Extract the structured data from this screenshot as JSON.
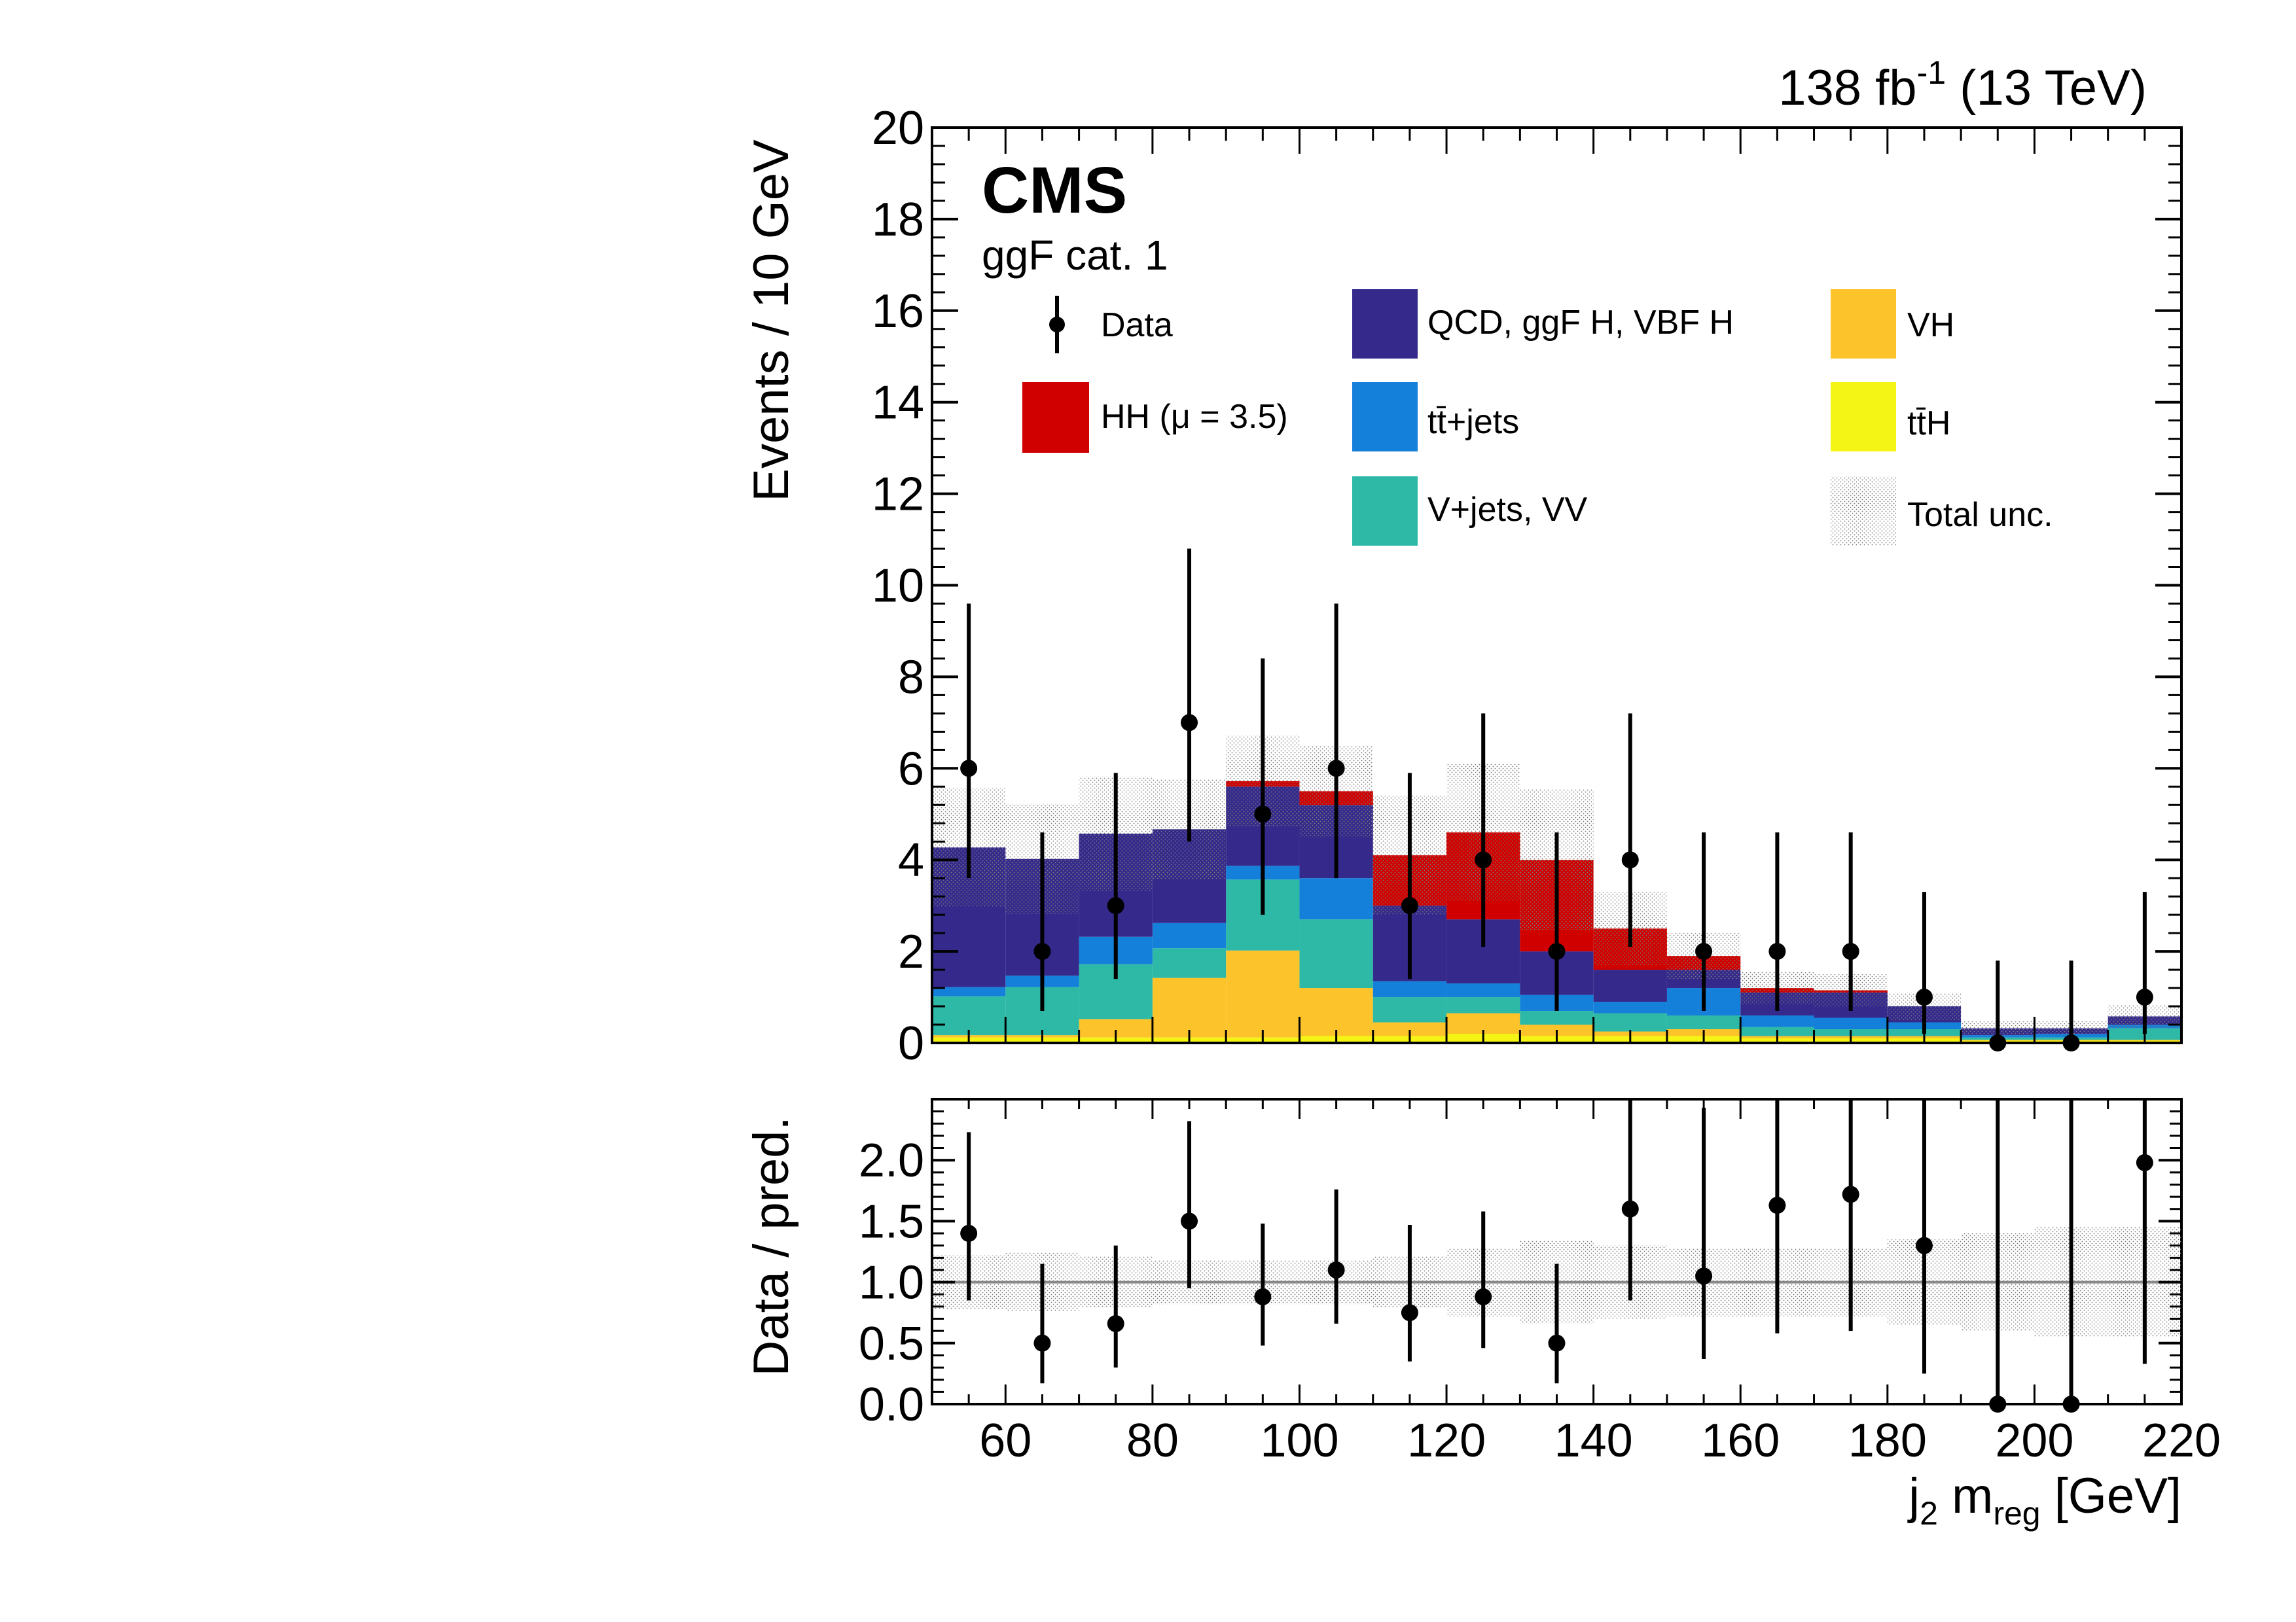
{
  "header": {
    "lumi": "138 fb",
    "lumi_sup": "-1",
    "energy": " (13 TeV)"
  },
  "experiment": "CMS",
  "category": "ggF cat. 1",
  "chart_data": [
    {
      "type": "bar",
      "stacked": true,
      "ylabel": "Events / 10 GeV",
      "xlim": [
        50,
        220
      ],
      "ylim": [
        0,
        20
      ],
      "yticks": [
        "0",
        "2",
        "4",
        "6",
        "8",
        "10",
        "12",
        "14",
        "16",
        "18",
        "20"
      ],
      "bin_edges": [
        50,
        60,
        70,
        80,
        90,
        100,
        110,
        120,
        130,
        140,
        150,
        160,
        170,
        180,
        190,
        200,
        210,
        220
      ],
      "series": [
        {
          "name": "t̅t̅H",
          "label": "ttH",
          "color": "#f5f515",
          "values": [
            0.12,
            0.12,
            0.12,
            0.12,
            0.12,
            0.15,
            0.15,
            0.2,
            0.15,
            0.15,
            0.15,
            0.1,
            0.1,
            0.1,
            0.05,
            0.05,
            0.05
          ]
        },
        {
          "name": "VH",
          "color": "#fdc32b",
          "values": [
            0.05,
            0.05,
            0.4,
            1.3,
            1.9,
            1.05,
            0.3,
            0.45,
            0.25,
            0.1,
            0.15,
            0.05,
            0.05,
            0.05,
            0.02,
            0.02,
            0.02
          ]
        },
        {
          "name": "V+jets, VV",
          "color": "#2db9a6",
          "values": [
            0.85,
            1.05,
            1.2,
            0.65,
            1.55,
            1.5,
            0.55,
            0.35,
            0.3,
            0.4,
            0.3,
            0.2,
            0.15,
            0.15,
            0.05,
            0.05,
            0.25
          ]
        },
        {
          "name": "t̅t+jets",
          "label": "tt+jets",
          "color": "#1580d9",
          "values": [
            0.2,
            0.25,
            0.6,
            0.55,
            0.3,
            0.9,
            0.35,
            0.3,
            0.35,
            0.25,
            0.6,
            0.25,
            0.25,
            0.15,
            0.05,
            0.08,
            0.08
          ]
        },
        {
          "name": "QCD, ggF H, VBF H",
          "color": "#352a8c",
          "values": [
            3.05,
            2.55,
            2.25,
            2.05,
            1.73,
            1.6,
            1.65,
            1.4,
            0.95,
            0.7,
            0.4,
            0.5,
            0.55,
            0.35,
            0.15,
            0.12,
            0.18
          ]
        },
        {
          "name": "HH (μ = 3.5)",
          "color": "#d10000",
          "values": [
            0.0,
            0.0,
            0.0,
            0.0,
            0.12,
            0.3,
            1.1,
            1.9,
            2.0,
            0.9,
            0.3,
            0.1,
            0.05,
            0.0,
            0.0,
            0.0,
            0.0
          ]
        }
      ],
      "total_unc": [
        1.3,
        1.2,
        1.25,
        1.1,
        1.0,
        1.0,
        1.3,
        1.5,
        1.55,
        0.8,
        0.5,
        0.35,
        0.35,
        0.3,
        0.15,
        0.15,
        0.25
      ],
      "data": {
        "name": "Data",
        "x": [
          55,
          65,
          75,
          85,
          95,
          105,
          115,
          125,
          135,
          145,
          155,
          165,
          175,
          185,
          195,
          205,
          215
        ],
        "y": [
          6,
          2,
          3,
          7,
          5,
          6,
          3,
          4,
          2,
          4,
          2,
          2,
          2,
          1,
          0,
          0,
          1
        ],
        "err_low": [
          2.4,
          1.3,
          1.6,
          2.6,
          2.2,
          2.4,
          1.6,
          1.9,
          1.3,
          1.9,
          1.3,
          1.3,
          1.3,
          0.8,
          0,
          0,
          0.8
        ],
        "err_high": [
          3.6,
          2.6,
          2.9,
          3.8,
          3.4,
          3.6,
          2.9,
          3.2,
          2.6,
          3.2,
          2.6,
          2.6,
          2.6,
          2.3,
          1.8,
          1.8,
          2.3
        ]
      },
      "legend": [
        {
          "label": "Data",
          "kind": "data"
        },
        {
          "label": "QCD, ggF H, VBF H",
          "color": "#352a8c"
        },
        {
          "label": "VH",
          "color": "#fdc32b"
        },
        {
          "label": "HH (μ = 3.5)",
          "color": "#d10000"
        },
        {
          "label": "t̅t+jets",
          "color": "#1580d9"
        },
        {
          "label": "t̅tH",
          "color": "#f5f515"
        },
        {
          "label": "V+jets, VV",
          "color": "#2db9a6"
        },
        {
          "label": "Total unc.",
          "kind": "hatch"
        }
      ],
      "legend_text": {
        "data": "Data",
        "qcd": "QCD, ggF H, VBF H",
        "vh": "VH",
        "hh": "HH (μ = 3.5)",
        "ttjets": "tt̄+jets",
        "tth": "tt̄H",
        "vjets": "V+jets, VV",
        "unc": "Total unc."
      }
    },
    {
      "type": "scatter",
      "ylabel": "Data / pred.",
      "xlabel": "j",
      "xlabel_sub1": "2",
      "xlabel_mid": " m",
      "xlabel_sub2": "reg",
      "xlabel_end": " [GeV]",
      "xlim": [
        50,
        220
      ],
      "ylim": [
        0,
        2.5
      ],
      "xticks": [
        "60",
        "80",
        "100",
        "120",
        "140",
        "160",
        "180",
        "200",
        "220"
      ],
      "yticks": [
        "0.0",
        "0.5",
        "1.0",
        "1.5",
        "2.0"
      ],
      "x": [
        55,
        65,
        75,
        85,
        95,
        105,
        115,
        125,
        135,
        145,
        155,
        165,
        175,
        185,
        195,
        205,
        215
      ],
      "y": [
        1.4,
        0.5,
        0.66,
        1.5,
        0.88,
        1.1,
        0.75,
        0.88,
        0.5,
        1.6,
        1.05,
        1.63,
        1.72,
        1.3,
        0.0,
        0.0,
        1.98
      ],
      "err_low": [
        0.55,
        0.33,
        0.36,
        0.55,
        0.4,
        0.44,
        0.4,
        0.42,
        0.33,
        0.75,
        0.68,
        1.05,
        1.12,
        1.05,
        0,
        0,
        1.65
      ],
      "err_high": [
        0.83,
        0.65,
        0.64,
        0.82,
        0.6,
        0.66,
        0.72,
        0.7,
        0.65,
        1.2,
        1.38,
        1.5,
        1.5,
        1.65,
        3.0,
        3.0,
        1.9
      ],
      "unc_band": [
        0.22,
        0.24,
        0.21,
        0.18,
        0.18,
        0.18,
        0.21,
        0.28,
        0.34,
        0.3,
        0.28,
        0.28,
        0.28,
        0.35,
        0.4,
        0.45,
        0.45
      ]
    }
  ]
}
